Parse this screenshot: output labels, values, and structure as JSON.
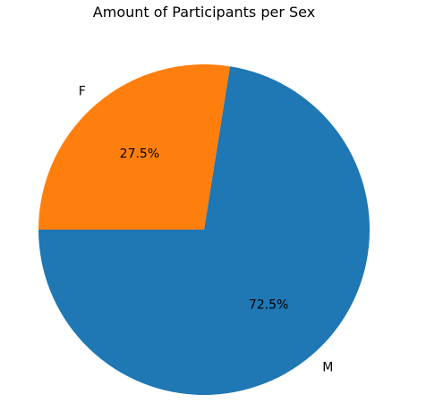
{
  "chart_data": {
    "type": "pie",
    "title": "Amount of Participants per Sex",
    "categories": [
      "M",
      "F"
    ],
    "values": [
      72.5,
      27.5
    ],
    "value_labels": [
      "72.5%",
      "27.5%"
    ],
    "colors": [
      "#1f77b4",
      "#ff7f0e"
    ],
    "start_angle_deg": 180,
    "direction": "counterclockwise",
    "legend": "none"
  }
}
